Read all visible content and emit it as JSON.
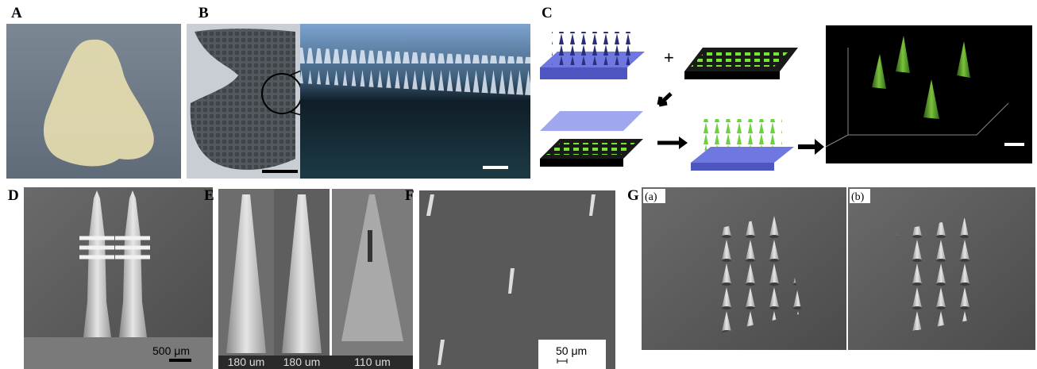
{
  "panels": [
    {
      "label": "A"
    },
    {
      "label": "B"
    },
    {
      "label": "C"
    },
    {
      "label": "D",
      "scale_bar": "500 μm"
    },
    {
      "label": "E",
      "scale_bars": [
        "180 um",
        "180 um",
        "110 um"
      ]
    },
    {
      "label": "F",
      "scale_bar": "50 μm"
    },
    {
      "label": "G",
      "subpanels": [
        "(a)",
        "(b)"
      ]
    }
  ]
}
